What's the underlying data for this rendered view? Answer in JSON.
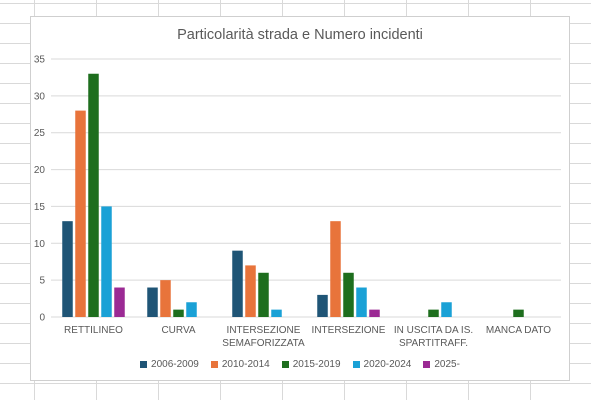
{
  "chart_data": {
    "type": "bar",
    "title": "Particolarità strada e Numero incidenti",
    "categories": [
      [
        "RETTILINEO"
      ],
      [
        "CURVA"
      ],
      [
        "INTERSEZIONE",
        "SEMAFORIZZATA"
      ],
      [
        "INTERSEZIONE"
      ],
      [
        "IN USCITA DA IS.",
        "SPARTITRAFF."
      ],
      [
        "MANCA DATO"
      ]
    ],
    "series": [
      {
        "name": "2006-2009",
        "color": "#1f5576",
        "values": [
          13,
          4,
          9,
          3,
          0,
          0
        ]
      },
      {
        "name": "2010-2014",
        "color": "#e8743b",
        "values": [
          28,
          5,
          7,
          13,
          0,
          0
        ]
      },
      {
        "name": "2015-2019",
        "color": "#1e6e1e",
        "values": [
          33,
          1,
          6,
          6,
          1,
          1
        ]
      },
      {
        "name": "2020-2024",
        "color": "#1aa1d6",
        "values": [
          15,
          2,
          1,
          4,
          2,
          0
        ]
      },
      {
        "name": "2025-",
        "color": "#9b2a94",
        "values": [
          4,
          0,
          0,
          1,
          0,
          0
        ]
      }
    ],
    "ylim": [
      0,
      35
    ],
    "yticks": [
      0,
      5,
      10,
      15,
      20,
      25,
      30,
      35
    ],
    "grid": true,
    "legend_position": "bottom"
  }
}
